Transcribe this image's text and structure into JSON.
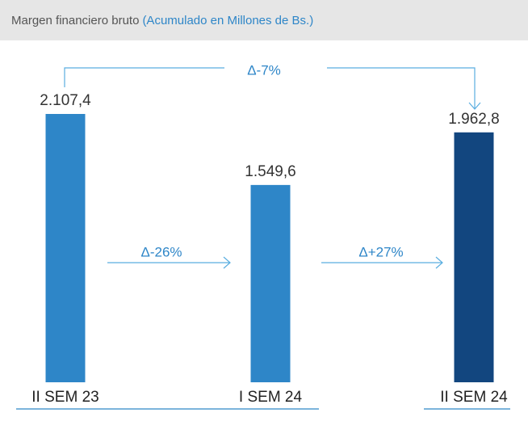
{
  "chart_data": {
    "type": "bar",
    "title": "Margen financiero bruto",
    "subtitle": "(Acumulado en Millones de Bs.)",
    "categories": [
      "II SEM 23",
      "I SEM 24",
      "II SEM 24"
    ],
    "values": [
      2107.4,
      1549.6,
      1962.8
    ],
    "value_labels": [
      "2.107,4",
      "1.549,6",
      "1.962,8"
    ],
    "colors": [
      "#2e86c8",
      "#2e86c8",
      "#12467f"
    ],
    "annotations": [
      "Δ-7%",
      "Δ-26%",
      "Δ+27%"
    ]
  }
}
